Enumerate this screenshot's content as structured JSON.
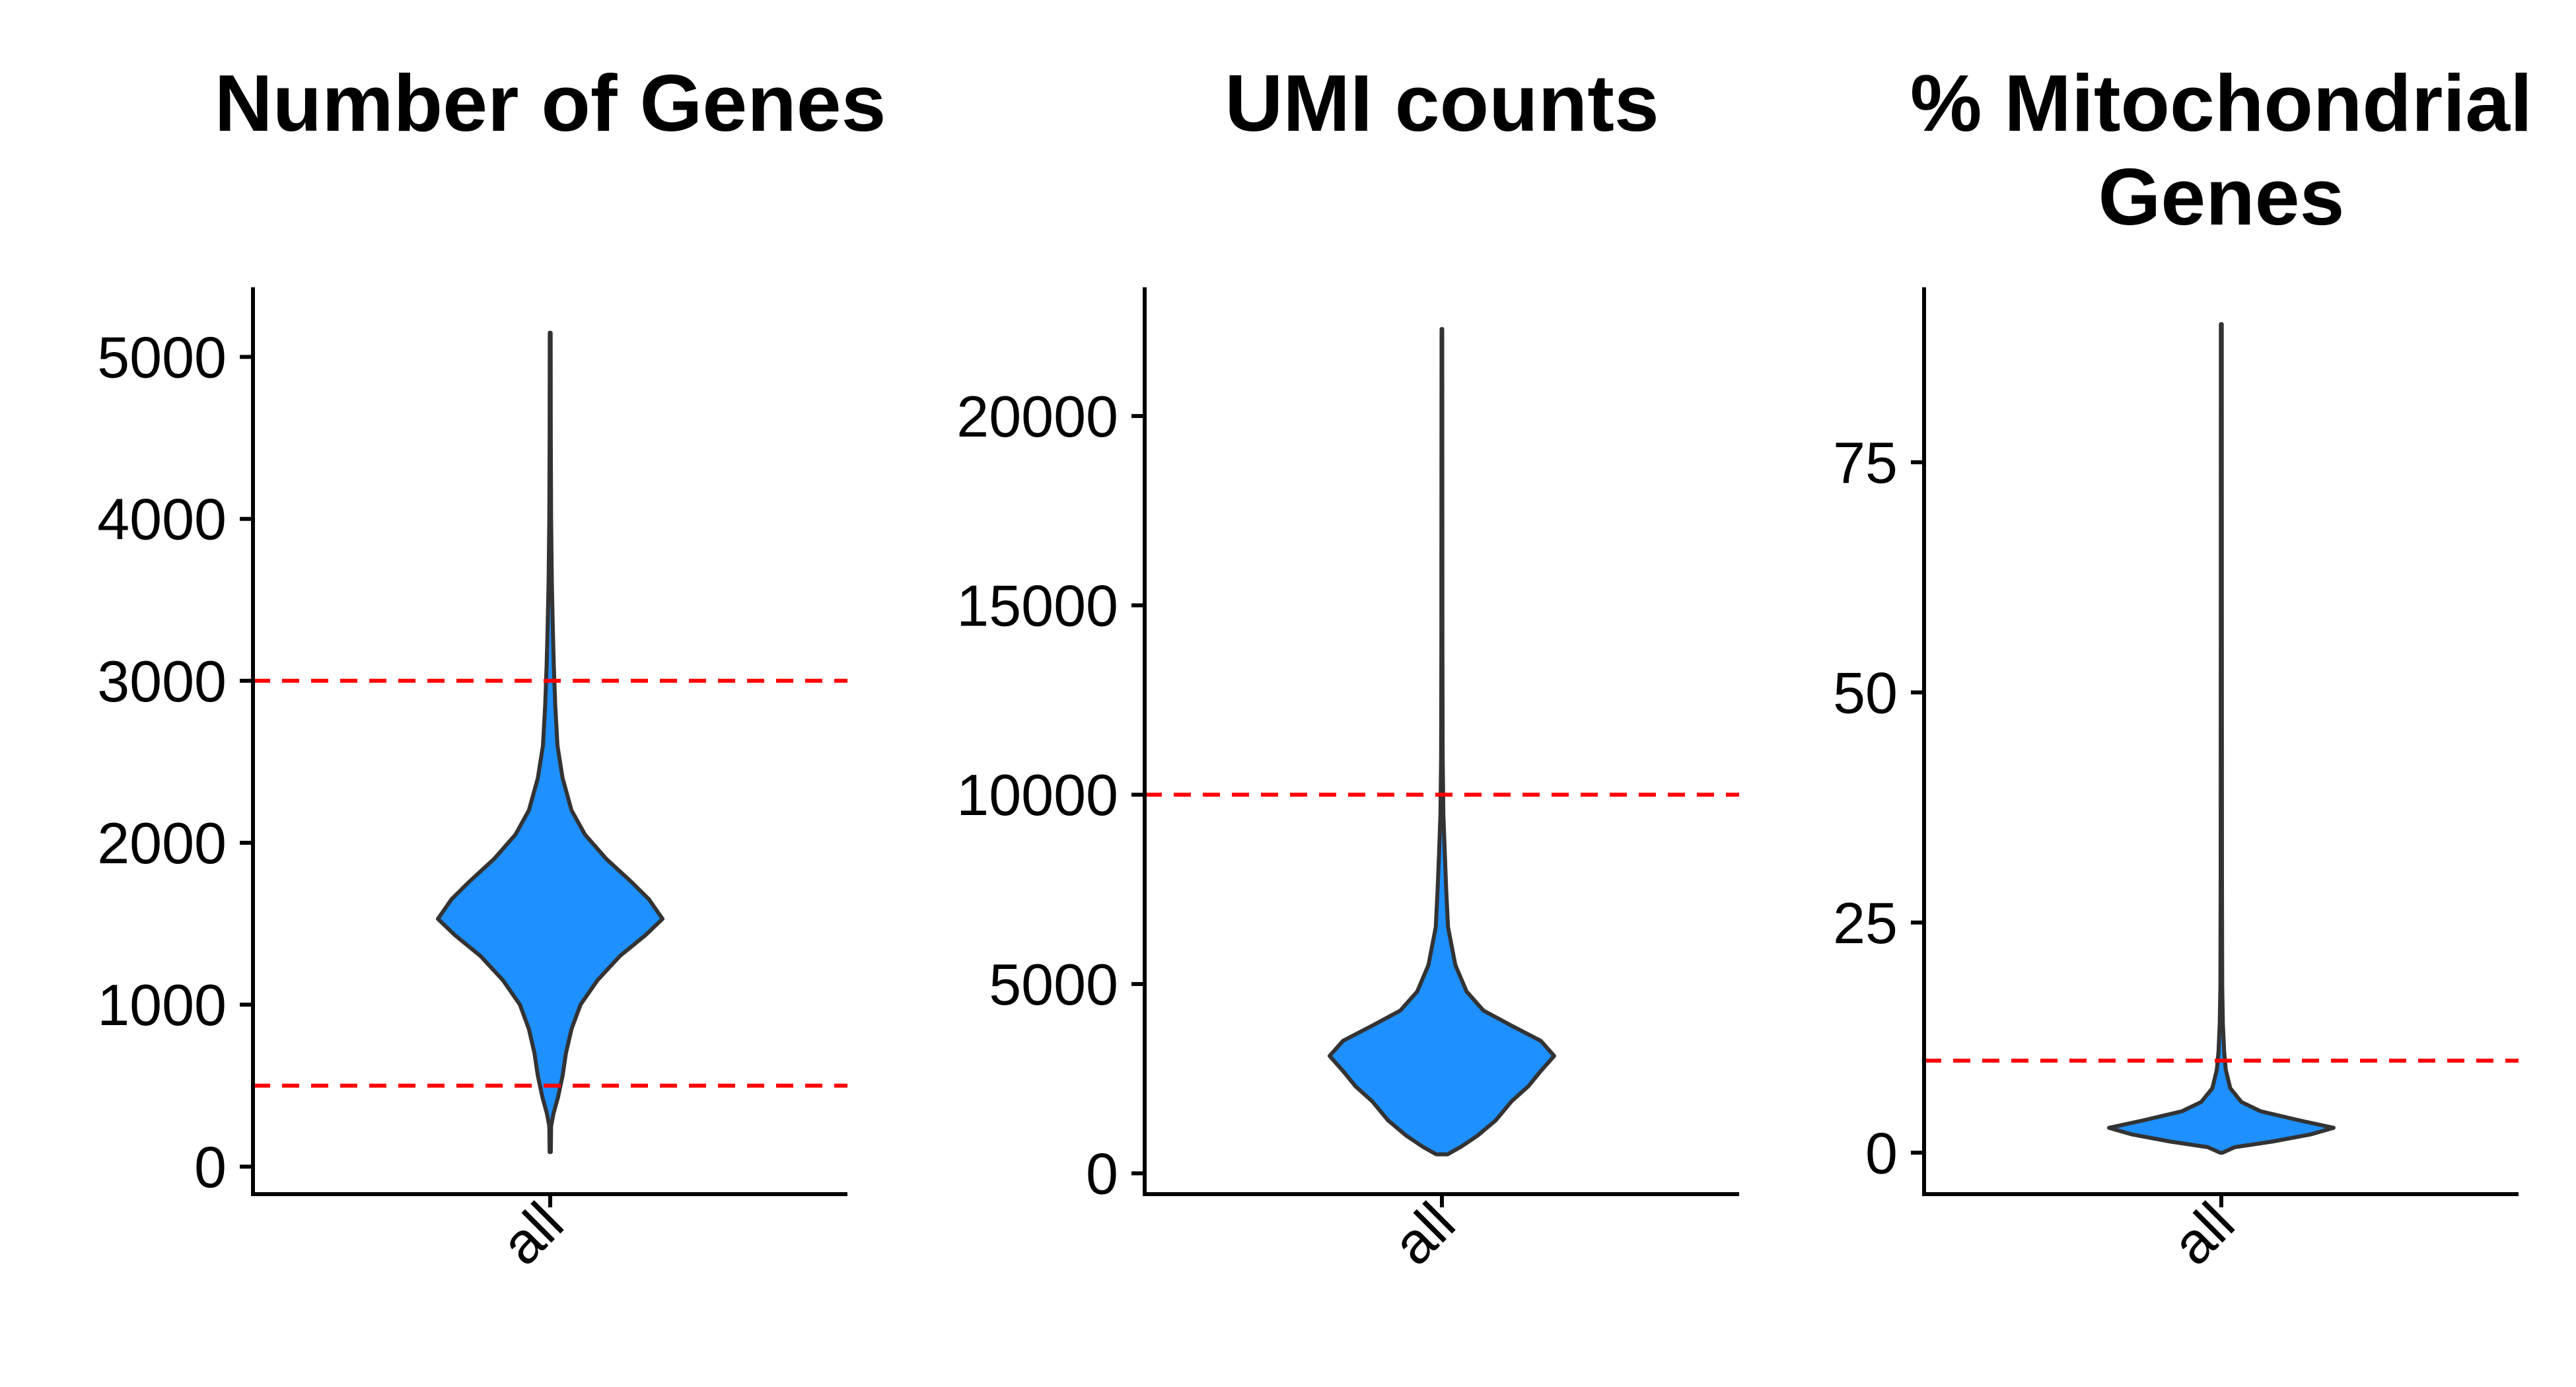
{
  "colors": {
    "violin_fill": "#1E90FF",
    "violin_outline": "#333333",
    "threshold_line": "#FF0000",
    "axis": "#000000"
  },
  "chart_data": [
    {
      "type": "violin",
      "title": [
        "Number of Genes"
      ],
      "categories": [
        "all"
      ],
      "xlabel": "",
      "ylabel": "",
      "ylim": [
        -170,
        5430
      ],
      "yticks": [
        0,
        1000,
        2000,
        3000,
        4000,
        5000
      ],
      "ytick_labels": [
        "0",
        "1000",
        "2000",
        "3000",
        "4000",
        "5000"
      ],
      "thresholds": [
        3000,
        500
      ],
      "grid": false,
      "violin": {
        "min": 90,
        "max": 5150,
        "density": [
          {
            "y": 90,
            "w": 0.005
          },
          {
            "y": 250,
            "w": 0.008
          },
          {
            "y": 330,
            "w": 0.03
          },
          {
            "y": 430,
            "w": 0.07
          },
          {
            "y": 560,
            "w": 0.11
          },
          {
            "y": 700,
            "w": 0.14
          },
          {
            "y": 850,
            "w": 0.19
          },
          {
            "y": 1000,
            "w": 0.27
          },
          {
            "y": 1150,
            "w": 0.42
          },
          {
            "y": 1300,
            "w": 0.62
          },
          {
            "y": 1430,
            "w": 0.85
          },
          {
            "y": 1530,
            "w": 1.0
          },
          {
            "y": 1650,
            "w": 0.88
          },
          {
            "y": 1760,
            "w": 0.72
          },
          {
            "y": 1900,
            "w": 0.5
          },
          {
            "y": 2050,
            "w": 0.31
          },
          {
            "y": 2200,
            "w": 0.19
          },
          {
            "y": 2400,
            "w": 0.11
          },
          {
            "y": 2600,
            "w": 0.065
          },
          {
            "y": 2850,
            "w": 0.045
          },
          {
            "y": 3100,
            "w": 0.032
          },
          {
            "y": 3300,
            "w": 0.024
          },
          {
            "y": 3600,
            "w": 0.015
          },
          {
            "y": 4000,
            "w": 0.008
          },
          {
            "y": 4500,
            "w": 0.005
          },
          {
            "y": 5150,
            "w": 0.004
          }
        ]
      }
    },
    {
      "type": "violin",
      "title": [
        "UMI counts"
      ],
      "categories": [
        "all"
      ],
      "xlabel": "",
      "ylabel": "",
      "ylim": [
        -550,
        23400
      ],
      "yticks": [
        0,
        5000,
        10000,
        15000,
        20000
      ],
      "ytick_labels": [
        "0",
        "5000",
        "10000",
        "15000",
        "20000"
      ],
      "thresholds": [
        10000
      ],
      "grid": false,
      "violin": {
        "min": 500,
        "max": 22300,
        "density": [
          {
            "y": 500,
            "w": 0.05
          },
          {
            "y": 700,
            "w": 0.17
          },
          {
            "y": 1000,
            "w": 0.32
          },
          {
            "y": 1400,
            "w": 0.48
          },
          {
            "y": 1900,
            "w": 0.62
          },
          {
            "y": 2300,
            "w": 0.77
          },
          {
            "y": 2700,
            "w": 0.88
          },
          {
            "y": 3100,
            "w": 1.0
          },
          {
            "y": 3500,
            "w": 0.88
          },
          {
            "y": 3900,
            "w": 0.62
          },
          {
            "y": 4300,
            "w": 0.37
          },
          {
            "y": 4800,
            "w": 0.22
          },
          {
            "y": 5500,
            "w": 0.12
          },
          {
            "y": 6500,
            "w": 0.055
          },
          {
            "y": 7500,
            "w": 0.038
          },
          {
            "y": 8500,
            "w": 0.025
          },
          {
            "y": 9500,
            "w": 0.013
          },
          {
            "y": 11000,
            "w": 0.007
          },
          {
            "y": 14000,
            "w": 0.005
          },
          {
            "y": 18000,
            "w": 0.004
          },
          {
            "y": 22300,
            "w": 0.003
          }
        ]
      }
    },
    {
      "type": "violin",
      "title": [
        "% Mitochondrial",
        "Genes"
      ],
      "categories": [
        "all"
      ],
      "xlabel": "",
      "ylabel": "",
      "ylim": [
        -4.5,
        94
      ],
      "yticks": [
        0,
        25,
        50,
        75
      ],
      "ytick_labels": [
        "0",
        "25",
        "50",
        "75"
      ],
      "thresholds": [
        10
      ],
      "grid": false,
      "violin": {
        "min": 0,
        "max": 90,
        "density": [
          {
            "y": 0,
            "w": 0.01
          },
          {
            "y": 0.6,
            "w": 0.12
          },
          {
            "y": 1.2,
            "w": 0.45
          },
          {
            "y": 2.0,
            "w": 0.8
          },
          {
            "y": 2.7,
            "w": 1.0
          },
          {
            "y": 3.5,
            "w": 0.7
          },
          {
            "y": 4.5,
            "w": 0.35
          },
          {
            "y": 5.5,
            "w": 0.18
          },
          {
            "y": 7,
            "w": 0.08
          },
          {
            "y": 9,
            "w": 0.04
          },
          {
            "y": 11,
            "w": 0.025
          },
          {
            "y": 14,
            "w": 0.014
          },
          {
            "y": 18,
            "w": 0.008
          },
          {
            "y": 30,
            "w": 0.006
          },
          {
            "y": 60,
            "w": 0.005
          },
          {
            "y": 90,
            "w": 0.004
          }
        ]
      }
    }
  ]
}
